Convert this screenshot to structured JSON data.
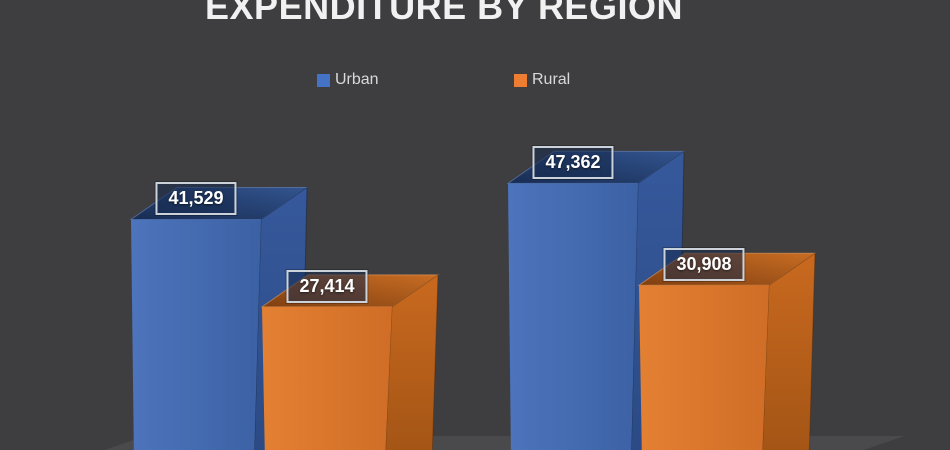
{
  "title": "EXPENDITURE BY REGION",
  "legend": {
    "position": "top",
    "items": [
      {
        "label": "Urban",
        "color": "#4472C4"
      },
      {
        "label": "Rural",
        "color": "#ED7D31"
      }
    ]
  },
  "chart_data": {
    "type": "bar",
    "subtype": "3d-clustered-column",
    "title": "EXPENDITURE BY REGION",
    "categories": [
      "",
      ""
    ],
    "series": [
      {
        "name": "Urban",
        "color": "#4472C4",
        "values": [
          41529,
          47362
        ],
        "labels": [
          "41,529",
          "47,362"
        ]
      },
      {
        "name": "Rural",
        "color": "#ED7D31",
        "values": [
          27414,
          30908
        ],
        "labels": [
          "27,414",
          "30,908"
        ]
      }
    ],
    "value_format": "#,##0",
    "gridlines": false,
    "axes_visible": false,
    "legend_position": "top",
    "background": "#3E3E40",
    "floor_color": "#4A4A4D",
    "label_text_color": "#FFFFFF",
    "label_border_color": "#CCD2DA",
    "title_color": "#F1F1F1",
    "legend_text_color": "#D9D9D9"
  }
}
